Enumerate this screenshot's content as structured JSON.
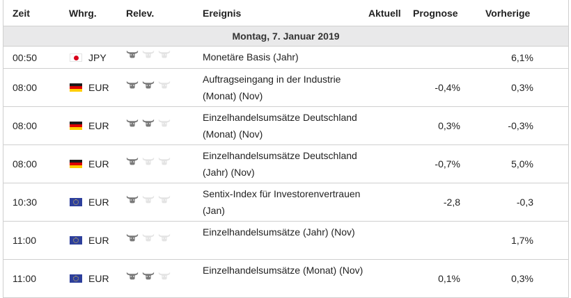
{
  "header": {
    "zeit": "Zeit",
    "whrg": "Whrg.",
    "relev": "Relev.",
    "ereignis": "Ereignis",
    "aktuell": "Aktuell",
    "prognose": "Prognose",
    "vorherige": "Vorherige"
  },
  "day_label": "Montag, 7. Januar 2019",
  "colors": {
    "bull_active": "#7a7a7a",
    "bull_inactive": "#e4e4e4",
    "day_bg": "#e9e9ea",
    "border": "#cfcfcf"
  },
  "rows": [
    {
      "time": "00:50",
      "flag": "jp",
      "currency": "JPY",
      "relevance": 1,
      "event": "Monetäre Basis (Jahr)",
      "actual": "",
      "forecast": "",
      "previous": "6,1%"
    },
    {
      "time": "08:00",
      "flag": "de",
      "currency": "EUR",
      "relevance": 2,
      "event": "Auftragseingang in der Industrie (Monat) (Nov)",
      "actual": "",
      "forecast": "-0,4%",
      "previous": "0,3%"
    },
    {
      "time": "08:00",
      "flag": "de",
      "currency": "EUR",
      "relevance": 2,
      "event": "Einzelhandelsumsätze Deutschland (Monat) (Nov)",
      "actual": "",
      "forecast": "0,3%",
      "previous": "-0,3%"
    },
    {
      "time": "08:00",
      "flag": "de",
      "currency": "EUR",
      "relevance": 1,
      "event": "Einzelhandelsumsätze Deutschland (Jahr) (Nov)",
      "actual": "",
      "forecast": "-0,7%",
      "previous": "5,0%"
    },
    {
      "time": "10:30",
      "flag": "eu",
      "currency": "EUR",
      "relevance": 1,
      "event": "Sentix-Index für Investorenvertrauen (Jan)",
      "actual": "",
      "forecast": "-2,8",
      "previous": "-0,3"
    },
    {
      "time": "11:00",
      "flag": "eu",
      "currency": "EUR",
      "relevance": 1,
      "event": "Einzelhandelsumsätze (Jahr) (Nov)",
      "actual": "",
      "forecast": "",
      "previous": "1,7%"
    },
    {
      "time": "11:00",
      "flag": "eu",
      "currency": "EUR",
      "relevance": 2,
      "event": "Einzelhandelsumsätze (Monat) (Nov)",
      "actual": "",
      "forecast": "0,1%",
      "previous": "0,3%"
    }
  ]
}
